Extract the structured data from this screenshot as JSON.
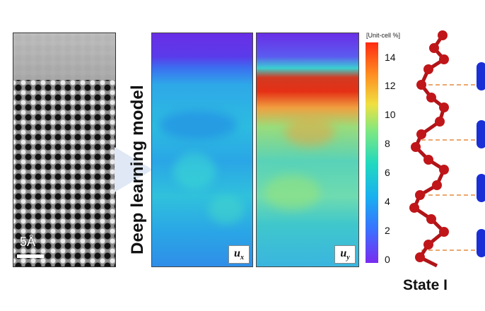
{
  "scale_bar": {
    "label": "5Å"
  },
  "arrow": {
    "color": "#dfe8f4"
  },
  "model_label": "Deep learning model",
  "maps": [
    {
      "label_main": "u",
      "label_sub": "x"
    },
    {
      "label_main": "u",
      "label_sub": "y"
    }
  ],
  "colorbar": {
    "unit": "[Unit-cell %]",
    "ticks": [
      "14",
      "12",
      "10",
      "8",
      "6",
      "4",
      "2",
      "0"
    ],
    "range": [
      0,
      15
    ]
  },
  "structure": {
    "state_label": "State I",
    "atom_color": "#c0161a",
    "partner_color": "#1a2fd6",
    "dash_color": "#e58a3c"
  }
}
